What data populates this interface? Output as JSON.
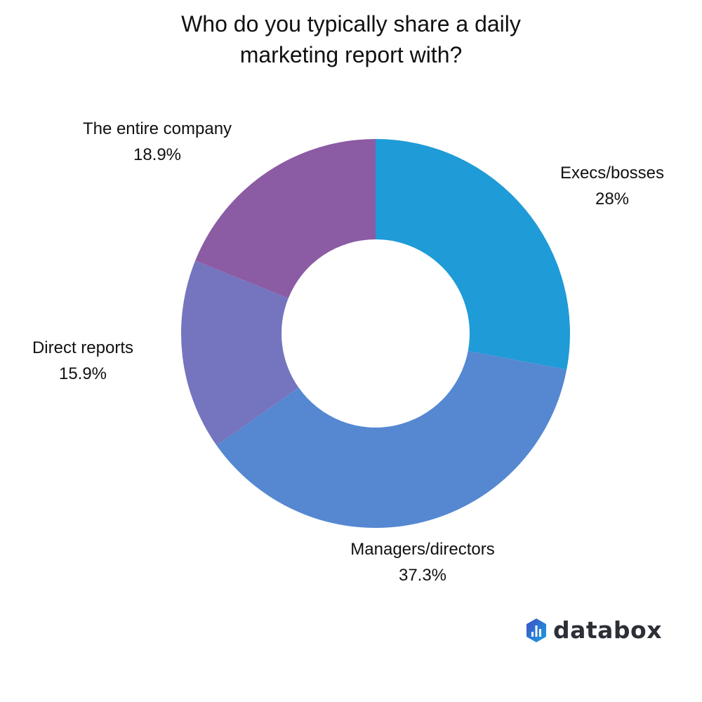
{
  "chart_data": {
    "type": "pie",
    "donut": true,
    "title": "Who do you typically share a daily marketing report with?",
    "title_lines": [
      "Who do you typically share a daily",
      "marketing report with?"
    ],
    "slices": [
      {
        "label": "Execs/bosses",
        "value": 28,
        "value_label": "28%",
        "color": "#1f9bd7"
      },
      {
        "label": "Managers/directors",
        "value": 37.3,
        "value_label": "37.3%",
        "color": "#5588d1"
      },
      {
        "label": "Direct reports",
        "value": 15.9,
        "value_label": "15.9%",
        "color": "#7574bf"
      },
      {
        "label": "The entire company",
        "value": 18.9,
        "value_label": "18.9%",
        "color": "#8b5ba3"
      }
    ],
    "start_angle": "top",
    "direction": "clockwise",
    "legend": "none"
  },
  "brand": {
    "name": "databox",
    "icon": "databox-logo-icon"
  }
}
